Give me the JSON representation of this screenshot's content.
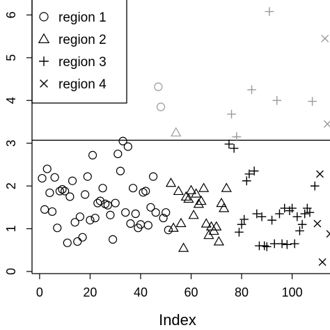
{
  "chart_data": {
    "type": "scatter",
    "title": "",
    "xlabel": "Index",
    "ylabel": "",
    "xlim": [
      -3,
      115
    ],
    "ylim": [
      -0.05,
      6.35
    ],
    "x_ticks": [
      0,
      20,
      40,
      60,
      80,
      100
    ],
    "x_tick_labels": [
      "0",
      "20",
      "40",
      "60",
      "80",
      "100"
    ],
    "y_ticks": [
      0,
      1,
      2,
      3,
      4,
      5,
      6
    ],
    "y_tick_labels": [
      "0",
      "1",
      "2",
      "3",
      "4",
      "5",
      "6"
    ],
    "grid": false,
    "reference_lines": [
      3.07
    ],
    "legend": {
      "position": "top-left",
      "entries": [
        {
          "label": "region 1",
          "marker": "circle"
        },
        {
          "label": "region 2",
          "marker": "triangle"
        },
        {
          "label": "region 3",
          "marker": "plus"
        },
        {
          "label": "region 4",
          "marker": "cross"
        }
      ]
    },
    "colors": {
      "below_line": "#000000",
      "above_line": "#999999"
    },
    "series": [
      {
        "name": "region 1",
        "marker": "circle",
        "points": [
          [
            1,
            2.18
          ],
          [
            2,
            1.45
          ],
          [
            3,
            2.4
          ],
          [
            4,
            1.84
          ],
          [
            5,
            1.4
          ],
          [
            6,
            2.2
          ],
          [
            7,
            1.02
          ],
          [
            8,
            1.88
          ],
          [
            9,
            1.92
          ],
          [
            10,
            1.88
          ],
          [
            11,
            0.67
          ],
          [
            12,
            1.75
          ],
          [
            13,
            2.12
          ],
          [
            14,
            1.15
          ],
          [
            15,
            0.7
          ],
          [
            16,
            1.28
          ],
          [
            17,
            0.8
          ],
          [
            18,
            1.8
          ],
          [
            19,
            2.22
          ],
          [
            20,
            1.2
          ],
          [
            21,
            2.72
          ],
          [
            22,
            1.25
          ],
          [
            23,
            1.6
          ],
          [
            24,
            1.65
          ],
          [
            25,
            1.95
          ],
          [
            26,
            1.58
          ],
          [
            27,
            1.55
          ],
          [
            28,
            1.32
          ],
          [
            29,
            0.75
          ],
          [
            30,
            1.6
          ],
          [
            31,
            2.75
          ],
          [
            32,
            2.35
          ],
          [
            33,
            3.05
          ],
          [
            34,
            1.38
          ],
          [
            35,
            2.92
          ],
          [
            36,
            1.12
          ],
          [
            37,
            1.95
          ],
          [
            38,
            1.35
          ],
          [
            39,
            1.02
          ],
          [
            40,
            1.1
          ],
          [
            41,
            1.85
          ],
          [
            42,
            1.88
          ],
          [
            43,
            1.08
          ],
          [
            44,
            1.5
          ],
          [
            45,
            2.22
          ],
          [
            46,
            1.38
          ],
          [
            47,
            4.32
          ],
          [
            48,
            3.85
          ],
          [
            49,
            1.25
          ],
          [
            50,
            1.38
          ],
          [
            51,
            0.97
          ]
        ]
      },
      {
        "name": "region 2",
        "marker": "triangle",
        "points": [
          [
            52,
            2.07
          ],
          [
            53,
            1.02
          ],
          [
            54,
            3.25
          ],
          [
            55,
            1.88
          ],
          [
            56,
            1.13
          ],
          [
            57,
            0.55
          ],
          [
            58,
            1.75
          ],
          [
            59,
            1.7
          ],
          [
            60,
            1.9
          ],
          [
            61,
            1.32
          ],
          [
            62,
            1.82
          ],
          [
            63,
            1.58
          ],
          [
            64,
            1.65
          ],
          [
            65,
            1.95
          ],
          [
            66,
            1.12
          ],
          [
            67,
            0.85
          ],
          [
            68,
            1.05
          ],
          [
            69,
            0.95
          ],
          [
            70,
            1.05
          ],
          [
            71,
            0.7
          ],
          [
            72,
            1.6
          ],
          [
            73,
            1.48
          ],
          [
            74,
            1.95
          ]
        ]
      },
      {
        "name": "region 3",
        "marker": "plus",
        "points": [
          [
            75,
            2.98
          ],
          [
            76,
            3.68
          ],
          [
            77,
            2.88
          ],
          [
            78,
            3.15
          ],
          [
            79,
            0.92
          ],
          [
            80,
            1.1
          ],
          [
            81,
            1.22
          ],
          [
            82,
            2.12
          ],
          [
            83,
            2.28
          ],
          [
            84,
            4.25
          ],
          [
            85,
            2.35
          ],
          [
            86,
            1.35
          ],
          [
            87,
            0.6
          ],
          [
            88,
            1.28
          ],
          [
            89,
            0.6
          ],
          [
            90,
            0.58
          ],
          [
            91,
            6.08
          ],
          [
            92,
            1.2
          ],
          [
            93,
            0.65
          ],
          [
            94,
            4.0
          ],
          [
            95,
            1.35
          ],
          [
            96,
            0.65
          ],
          [
            97,
            1.48
          ],
          [
            98,
            0.63
          ],
          [
            99,
            1.42
          ],
          [
            100,
            1.48
          ],
          [
            101,
            0.65
          ],
          [
            102,
            1.28
          ],
          [
            103,
            0.95
          ],
          [
            104,
            1.1
          ],
          [
            105,
            1.35
          ],
          [
            106,
            1.48
          ],
          [
            107,
            1.38
          ],
          [
            108,
            3.98
          ],
          [
            109,
            2.0
          ]
        ]
      },
      {
        "name": "region 4",
        "marker": "cross",
        "points": [
          [
            110,
            1.12
          ],
          [
            111,
            2.28
          ],
          [
            112,
            0.22
          ],
          [
            113,
            5.45
          ],
          [
            114,
            3.45
          ],
          [
            115,
            0.88
          ]
        ]
      }
    ]
  }
}
